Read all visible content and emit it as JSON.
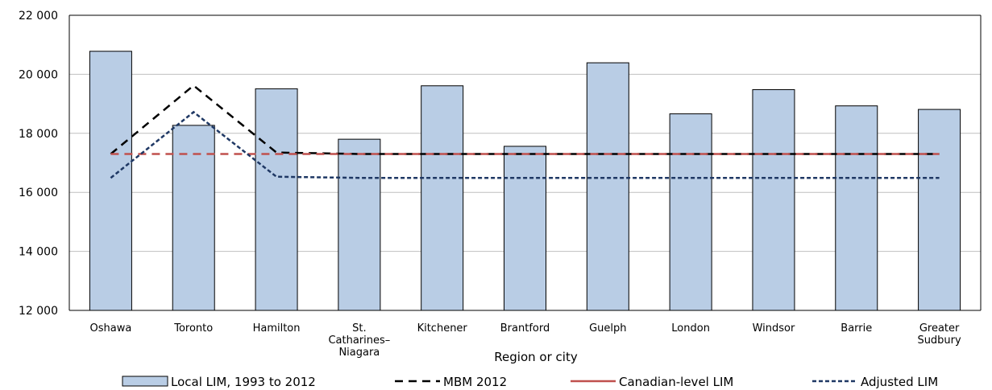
{
  "chart_data": {
    "type": "bar",
    "title": "",
    "xlabel": "Region or city",
    "ylabel": "",
    "ylim": [
      12000,
      22000
    ],
    "yticks": [
      12000,
      14000,
      16000,
      18000,
      20000,
      22000
    ],
    "ytick_labels": [
      "12 000",
      "14 000",
      "16 000",
      "18 000",
      "20 000",
      "22 000"
    ],
    "grid": true,
    "legend_position": "bottom",
    "categories": [
      [
        "Oshawa"
      ],
      [
        "Toronto"
      ],
      [
        "Hamilton"
      ],
      [
        "St.",
        "Catharines–",
        "Niagara"
      ],
      [
        "Kitchener"
      ],
      [
        "Brantford"
      ],
      [
        "Guelph"
      ],
      [
        "London"
      ],
      [
        "Windsor"
      ],
      [
        "Barrie"
      ],
      [
        "Greater",
        "Sudbury"
      ]
    ],
    "series": [
      {
        "name": "Local LIM, 1993 to 2012",
        "kind": "bar",
        "color": "#b9cde5",
        "values": [
          20780,
          18270,
          19510,
          17800,
          19610,
          17560,
          20390,
          18660,
          19480,
          18930,
          18810
        ]
      },
      {
        "name": "MBM 2012",
        "kind": "line",
        "style": "dashed",
        "color": "#000000",
        "values": [
          17300,
          19620,
          17350,
          17300,
          17300,
          17300,
          17300,
          17300,
          17300,
          17300,
          17300
        ]
      },
      {
        "name": "Canadian-level LIM",
        "kind": "line",
        "style": "dashed",
        "color": "#c0504d",
        "values": [
          17300,
          17300,
          17300,
          17300,
          17300,
          17300,
          17300,
          17300,
          17300,
          17300,
          17300
        ]
      },
      {
        "name": "Adjusted LIM",
        "kind": "line",
        "style": "dotted",
        "color": "#1f3864",
        "values": [
          16490,
          18720,
          16530,
          16490,
          16490,
          16490,
          16490,
          16490,
          16490,
          16490,
          16490
        ]
      }
    ],
    "legend": [
      {
        "label": "Local LIM, 1993 to 2012",
        "symbol": "bar",
        "color": "#b9cde5"
      },
      {
        "label": "MBM 2012",
        "symbol": "dashed",
        "color": "#000000"
      },
      {
        "label": "Canadian-level LIM",
        "symbol": "solid",
        "color": "#c0504d"
      },
      {
        "label": "Adjusted LIM",
        "symbol": "dotted",
        "color": "#1f3864"
      }
    ]
  }
}
